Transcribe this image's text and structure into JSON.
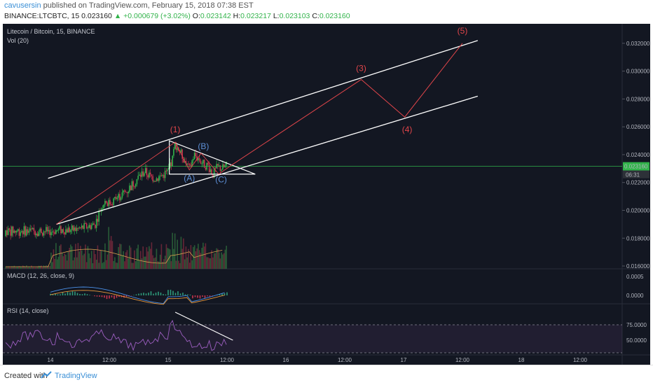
{
  "header": {
    "author": "cavusersin",
    "published": "published on TradingView.com, February 15, 2018 07:38 EST",
    "symbol_prefix": "BINANCE:LTCBTC, 15",
    "last": "0.023160",
    "change": "▲ +0.000679 (+3.02%)",
    "o_label": "O:",
    "o_val": "0.023142",
    "h_label": "H:",
    "h_val": "0.023217",
    "l_label": "L:",
    "l_val": "0.023103",
    "c_label": "C:",
    "c_val": "0.023160"
  },
  "colors": {
    "background": "#131722",
    "up": "#31b34a",
    "down": "#c8344e",
    "wave": "#e0454a",
    "abc": "#5d8fd6",
    "channel": "#ffffff",
    "rsi": "#8a4fa6",
    "price_line": "#31b34a"
  },
  "chart_data": [
    {
      "type": "line",
      "title": "Litecoin / Bitcoin, 15, BINANCE",
      "volume_label": "Vol (20)",
      "x_ticks": [
        "14",
        "12:00",
        "15",
        "12:00",
        "16",
        "12:00",
        "17",
        "12:00",
        "18",
        "12:00"
      ],
      "y_ticks": [
        "0.032000",
        "0.030000",
        "0.028000",
        "0.026000",
        "0.024000",
        "0.022000",
        "0.020000",
        "0.018000",
        "0.016000"
      ],
      "ylim": [
        0.0158,
        0.0334
      ],
      "last_price_label": "0.023160",
      "countdown_label": "06:31",
      "series": [
        {
          "values_x_days": [
            0.0,
            0.1,
            0.2,
            0.3,
            0.38,
            0.42,
            0.46,
            0.5,
            0.55,
            0.6,
            0.65,
            0.7,
            0.75,
            0.8,
            0.85,
            0.9,
            0.95,
            1.0,
            1.03,
            1.06,
            1.1,
            1.14,
            1.18,
            1.22,
            1.26,
            1.3,
            1.34,
            1.38,
            1.42,
            1.46,
            1.5
          ],
          "values": [
            0.0185,
            0.0186,
            0.0186,
            0.0188,
            0.019,
            0.02,
            0.0207,
            0.0205,
            0.0208,
            0.0211,
            0.0214,
            0.0219,
            0.0224,
            0.0228,
            0.0224,
            0.0223,
            0.0225,
            0.0228,
            0.0234,
            0.0248,
            0.0242,
            0.0236,
            0.0229,
            0.024,
            0.0237,
            0.0233,
            0.0232,
            0.0226,
            0.0231,
            0.023,
            0.0232
          ]
        }
      ],
      "wave_labels": [
        "(1)",
        "(3)",
        "(5)",
        "(4)"
      ],
      "abc_labels": [
        "(A)",
        "(B)",
        "(C)"
      ],
      "wave_path": {
        "x_days": [
          1.53,
          2.64,
          3.01,
          3.5
        ],
        "values": [
          0.0232,
          0.0294,
          0.0267,
          0.032
        ]
      }
    },
    {
      "type": "line",
      "title": "MACD (12, 26, close, 9)",
      "y_ticks": [
        "0.0005",
        "0.0000"
      ]
    },
    {
      "type": "line",
      "title": "RSI (14, close)",
      "y_ticks": [
        "75.0000",
        "50.0000"
      ]
    }
  ],
  "footer": {
    "created": "Created with",
    "brand": "TradingView"
  }
}
